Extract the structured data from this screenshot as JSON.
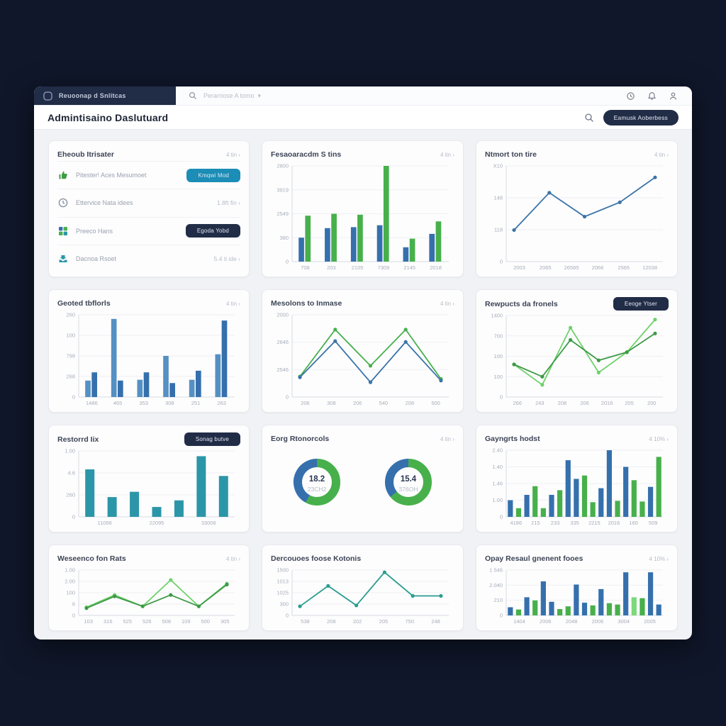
{
  "topbar": {
    "brand": "Reuoonap d Snlitcas",
    "search_placeholder": "Perarriose A tomo  ▾",
    "icons": [
      "history-icon",
      "bell-icon",
      "user-icon"
    ]
  },
  "header": {
    "title": "Admintisaino Daslutuard",
    "action_label": "Eamusk Aoberbess"
  },
  "colors": {
    "blue": "#3570ad",
    "blue2": "#5590c2",
    "green": "#47b04b",
    "green_dark": "#3d9a46",
    "green_light": "#6fd16a",
    "teal": "#2b96a8",
    "teal_line": "#2a9d8f",
    "navy": "#212c47",
    "accent_teal": "#1b8db6"
  },
  "cards": [
    {
      "title": "Eheoub Itrisater",
      "meta": "4 tin ›",
      "rows": [
        {
          "icon": "thumbs-up-icon",
          "label": "Pitester! Aces Mesumoet",
          "button": "Kmqwi Mod"
        },
        {
          "icon": "clock-icon",
          "label": "Ettervice Nata idees",
          "value": "1.8ft fin ›"
        },
        {
          "icon": "grid-icon",
          "label": "Preeco Hans",
          "button": "Egoda Yobd"
        },
        {
          "icon": "inbox-icon",
          "label": "Dacnoa Rsoet",
          "value": "5.4 ti ide ›"
        }
      ]
    },
    {
      "title": "Fesaoaracdm S tins",
      "meta": "4 tin ›",
      "chart": {
        "type": "group-bar",
        "ylim": [
          0,
          100
        ],
        "y": [
          "2800",
          "3919",
          "2549",
          "380",
          "0"
        ],
        "x": [
          "708",
          "203",
          "2105",
          "7309",
          "2145",
          "2018"
        ],
        "series": [
          {
            "name": "series-blue",
            "color": "b",
            "values": [
              25,
              35,
              36,
              38,
              15,
              29
            ]
          },
          {
            "name": "series-green",
            "color": "g",
            "values": [
              48,
              50,
              49,
              100,
              24,
              42
            ]
          }
        ]
      }
    },
    {
      "title": "Ntmort ton tire",
      "meta": "4 tin ›",
      "chart": {
        "type": "line",
        "ylim": [
          0,
          100
        ],
        "y": [
          "X10",
          "148",
          "118",
          "0"
        ],
        "x": [
          "2003",
          "2065",
          "26585",
          "2066",
          "2565",
          "12038"
        ],
        "series": [
          {
            "name": "series-blue",
            "color": "bl",
            "values": [
              33,
              72,
              47,
              62,
              88
            ]
          }
        ]
      }
    },
    {
      "title": "Geoted tbflorls",
      "meta": "4 tin ›",
      "chart": {
        "type": "group-bar",
        "ylim": [
          0,
          100
        ],
        "y": [
          "260",
          "100",
          "798",
          "268",
          "0"
        ],
        "x": [
          "1486",
          "465",
          "353",
          "308",
          "251",
          "263"
        ],
        "series": [
          {
            "name": "series-blue-a",
            "color": "b2",
            "values": [
              20,
              95,
              21,
              50,
              21,
              52
            ]
          },
          {
            "name": "series-blue-b",
            "color": "b",
            "values": [
              30,
              20,
              30,
              17,
              32,
              93
            ]
          }
        ]
      }
    },
    {
      "title": "Mesolons to Inmase",
      "meta": "4 tin ›",
      "chart": {
        "type": "line",
        "ylim": [
          0,
          100
        ],
        "y": [
          "2000",
          "2646",
          "2546",
          "0"
        ],
        "x": [
          "206",
          "308",
          "206",
          "540",
          "208",
          "500"
        ],
        "series": [
          {
            "name": "series-green",
            "color": "g",
            "values": [
              25,
              82,
              38,
              82,
              22
            ]
          },
          {
            "name": "series-blue",
            "color": "bl",
            "values": [
              24,
              68,
              18,
              67,
              20
            ]
          }
        ]
      }
    },
    {
      "title": "Rewpucts da fronels",
      "button": "Eeoge Ytser",
      "chart": {
        "type": "line",
        "ylim": [
          0,
          100
        ],
        "y": [
          "1400",
          "700",
          "100",
          "100",
          "0"
        ],
        "x": [
          "266",
          "243",
          "208",
          "206",
          "2016",
          "205",
          "200"
        ],
        "series": [
          {
            "name": "series-green-light",
            "color": "glt",
            "values": [
              40,
              15,
              85,
              30,
              55,
              95
            ]
          },
          {
            "name": "series-green-dark",
            "color": "gd",
            "values": [
              40,
              25,
              70,
              45,
              55,
              78
            ]
          }
        ]
      }
    },
    {
      "title": "Restorrd Iix",
      "button": "Sonag butve",
      "chart": {
        "type": "bars",
        "ylim": [
          0,
          100
        ],
        "y": [
          "1.00",
          "4.6",
          "260",
          "0"
        ],
        "x": [
          "11066",
          "22095",
          "33006"
        ],
        "bars": [
          {
            "c": "t",
            "v": 72
          },
          {
            "c": "t",
            "v": 30
          },
          {
            "c": "t",
            "v": 38
          },
          {
            "c": "t",
            "v": 15
          },
          {
            "c": "t",
            "v": 25
          },
          {
            "c": "t",
            "v": 92
          },
          {
            "c": "t",
            "v": 62
          }
        ]
      }
    },
    {
      "title": "Eorg Rtonorcols",
      "meta": "4 tin ›",
      "chart": {
        "type": "donut",
        "donuts": [
          {
            "value": "18.2",
            "sub": "23CH2",
            "green_pct": 58,
            "blue_pct": 42
          },
          {
            "value": "15.4",
            "sub": "376OH",
            "green_pct": 64,
            "blue_pct": 36
          }
        ]
      }
    },
    {
      "title": "Gayngrts hodst",
      "meta": "4 10% ›",
      "chart": {
        "type": "bars",
        "ylim": [
          0,
          100
        ],
        "y": [
          "2.40",
          "1.40",
          "1.46",
          "1.00",
          "0"
        ],
        "x": [
          "4186",
          "215",
          "233",
          "335",
          "2215",
          "2016",
          "160",
          "509"
        ],
        "bars": [
          {
            "c": "b",
            "v": 25
          },
          {
            "c": "g",
            "v": 13
          },
          {
            "c": "b",
            "v": 33
          },
          {
            "c": "g",
            "v": 46
          },
          {
            "c": "g",
            "v": 13
          },
          {
            "c": "b",
            "v": 33
          },
          {
            "c": "g",
            "v": 40
          },
          {
            "c": "b",
            "v": 85
          },
          {
            "c": "b",
            "v": 57
          },
          {
            "c": "g",
            "v": 62
          },
          {
            "c": "g",
            "v": 22
          },
          {
            "c": "b",
            "v": 43
          },
          {
            "c": "b",
            "v": 100
          },
          {
            "c": "g",
            "v": 24
          },
          {
            "c": "b",
            "v": 75
          },
          {
            "c": "g",
            "v": 55
          },
          {
            "c": "g",
            "v": 23
          },
          {
            "c": "b",
            "v": 45
          },
          {
            "c": "g",
            "v": 90
          }
        ]
      }
    },
    {
      "title": "Weseenco fon Rats",
      "meta": "4 tin ›",
      "chart": {
        "type": "line",
        "ylim": [
          0,
          100
        ],
        "y": [
          "1.00",
          "2.00",
          "100",
          "6",
          "0"
        ],
        "x": [
          "103",
          "316",
          "525",
          "526",
          "508",
          "109",
          "500",
          "305"
        ],
        "series": [
          {
            "name": "series-green-light",
            "color": "glt",
            "values": [
              18,
              45,
              20,
              78,
              20,
              70
            ]
          },
          {
            "name": "series-green-dark",
            "color": "gd",
            "values": [
              16,
              42,
              20,
              45,
              20,
              68
            ]
          }
        ]
      }
    },
    {
      "title": "Dercouoes foose Kotonis",
      "meta": "",
      "chart": {
        "type": "line",
        "ylim": [
          0,
          100
        ],
        "y": [
          "1500",
          "1013",
          "1025",
          "300",
          "0"
        ],
        "x": [
          "538",
          "208",
          "202",
          "205",
          "750",
          "248"
        ],
        "series": [
          {
            "name": "series-teal",
            "color": "tl",
            "values": [
              20,
              65,
              22,
              95,
              43,
              43
            ]
          }
        ]
      }
    },
    {
      "title": "Opay Resaul gnenent fooes",
      "meta": "4 10% ›",
      "chart": {
        "type": "bars",
        "ylim": [
          0,
          100
        ],
        "y": [
          "1 546",
          "2.040",
          "210",
          "0"
        ],
        "x": [
          "1404",
          "2006",
          "2048",
          "2006",
          "3004",
          "2005"
        ],
        "bars": [
          {
            "c": "b",
            "v": 18
          },
          {
            "c": "g",
            "v": 13
          },
          {
            "c": "b",
            "v": 40
          },
          {
            "c": "g",
            "v": 33
          },
          {
            "c": "b",
            "v": 75
          },
          {
            "c": "b",
            "v": 30
          },
          {
            "c": "g",
            "v": 14
          },
          {
            "c": "g",
            "v": 20
          },
          {
            "c": "b",
            "v": 68
          },
          {
            "c": "b",
            "v": 28
          },
          {
            "c": "g",
            "v": 22
          },
          {
            "c": "b",
            "v": 58
          },
          {
            "c": "g",
            "v": 27
          },
          {
            "c": "g",
            "v": 24
          },
          {
            "c": "b",
            "v": 95
          },
          {
            "c": "lg",
            "v": 40
          },
          {
            "c": "g",
            "v": 38
          },
          {
            "c": "b",
            "v": 95
          },
          {
            "c": "b",
            "v": 24
          }
        ]
      }
    }
  ]
}
